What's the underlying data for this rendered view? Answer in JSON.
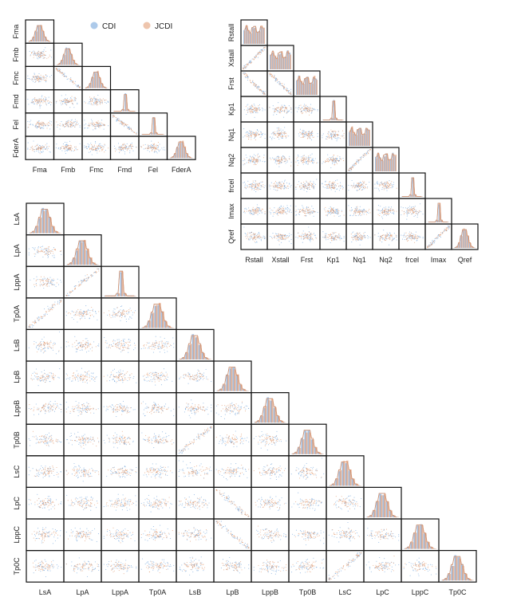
{
  "chart_data": {
    "type": "scatter",
    "kind": "pair-plot-matrices",
    "legend": {
      "placement": "top-center-of-first-matrix",
      "entries": [
        {
          "name": "CDI",
          "color": "#6a9fd8"
        },
        {
          "name": "JCDI",
          "color": "#e0956a"
        }
      ]
    },
    "colors": {
      "cdi": "#6a9fd8",
      "jcdi": "#e0956a",
      "frame": "#111111"
    },
    "matrices": [
      {
        "id": "fault-params",
        "variables": [
          "Fma",
          "Fmb",
          "Fmc",
          "Fmd",
          "Fel",
          "FderA"
        ],
        "diag_style": [
          "normal",
          "normal",
          "normal",
          "spike",
          "spike",
          "normal"
        ],
        "offdiag": [
          {
            "row": "Fmc",
            "col": "Fmb",
            "relation": "negative"
          },
          {
            "row": "Fel",
            "col": "Fmd",
            "relation": "negative"
          }
        ]
      },
      {
        "id": "converter-params",
        "variables": [
          "Rstall",
          "Xstall",
          "Frst",
          "Kp1",
          "Nq1",
          "Nq2",
          "frcel",
          "Imax",
          "Qref"
        ],
        "diag_style": [
          "uniform",
          "uniform",
          "uniform",
          "spike",
          "uniform",
          "uniform",
          "spike",
          "spike",
          "normal"
        ],
        "offdiag": [
          {
            "row": "Xstall",
            "col": "Rstall",
            "relation": "positive"
          },
          {
            "row": "Frst",
            "col": "Rstall",
            "relation": "negative"
          },
          {
            "row": "Frst",
            "col": "Xstall",
            "relation": "negative"
          },
          {
            "row": "Nq2",
            "col": "Nq1",
            "relation": "positive"
          },
          {
            "row": "Qref",
            "col": "Imax",
            "relation": "positive"
          }
        ]
      },
      {
        "id": "line-params",
        "variables": [
          "LsA",
          "LpA",
          "LppA",
          "Tp0A",
          "LsB",
          "LpB",
          "LppB",
          "Tp0B",
          "LsC",
          "LpC",
          "LppC",
          "Tp0C"
        ],
        "diag_style": [
          "normal",
          "normal",
          "spike",
          "normal",
          "normal",
          "normal",
          "normal",
          "normal",
          "normal",
          "normal",
          "normal",
          "normal"
        ],
        "offdiag": [
          {
            "row": "LppA",
            "col": "LpA",
            "relation": "positive"
          },
          {
            "row": "Tp0A",
            "col": "LsA",
            "relation": "positive"
          },
          {
            "row": "Tp0B",
            "col": "LsB",
            "relation": "positive"
          },
          {
            "row": "LpC",
            "col": "LpB",
            "relation": "negative"
          },
          {
            "row": "LppC",
            "col": "LpB",
            "relation": "negative"
          },
          {
            "row": "Tp0C",
            "col": "LsC",
            "relation": "positive"
          }
        ]
      }
    ]
  }
}
